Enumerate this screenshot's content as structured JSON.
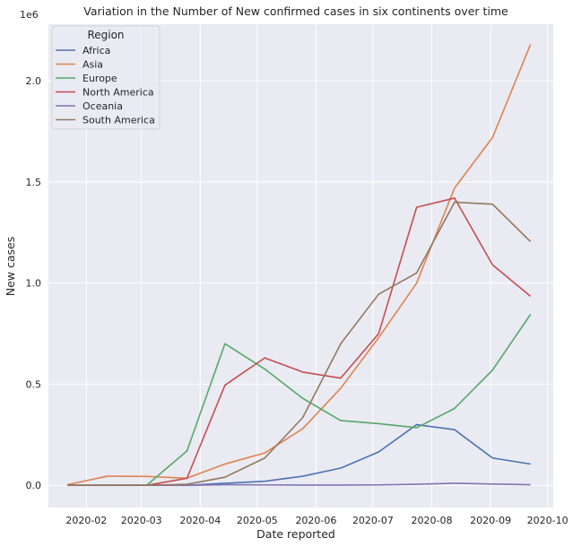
{
  "chart_data": {
    "type": "line",
    "title": "Variation in the Number of New confirmed cases in six continents over time",
    "xlabel": "Date reported",
    "ylabel": "New cases",
    "y_scale_label": "1e6",
    "x_ticks": [
      "2020-02",
      "2020-03",
      "2020-04",
      "2020-05",
      "2020-06",
      "2020-07",
      "2020-08",
      "2020-09",
      "2020-10"
    ],
    "y_ticks": [
      "0.0",
      "0.5",
      "1.0",
      "1.5",
      "2.0"
    ],
    "ylim": [
      -0.11,
      2.28
    ],
    "grid": true,
    "legend": {
      "title": "Region",
      "placement": "top-left"
    },
    "x": [
      "2020-01-22",
      "2020-02-12",
      "2020-03-04",
      "2020-03-25",
      "2020-04-14",
      "2020-05-05",
      "2020-05-25",
      "2020-06-14",
      "2020-07-04",
      "2020-07-24",
      "2020-08-13",
      "2020-09-02",
      "2020-09-22"
    ],
    "series": [
      {
        "name": "Africa",
        "color": "#4c72b0",
        "values": [
          0.0,
          0.0,
          0.0,
          0.0,
          0.01,
          0.02,
          0.045,
          0.085,
          0.165,
          0.3,
          0.275,
          0.135,
          0.105
        ]
      },
      {
        "name": "Asia",
        "color": "#dd8452",
        "values": [
          0.003,
          0.045,
          0.044,
          0.035,
          0.105,
          0.16,
          0.28,
          0.48,
          0.73,
          1.0,
          1.47,
          1.72,
          2.18
        ]
      },
      {
        "name": "Europe",
        "color": "#55a868",
        "values": [
          0.0,
          0.0,
          0.002,
          0.17,
          0.7,
          0.575,
          0.43,
          0.32,
          0.305,
          0.285,
          0.38,
          0.57,
          0.845
        ]
      },
      {
        "name": "North America",
        "color": "#c44e52",
        "values": [
          0.0,
          0.0,
          0.0,
          0.035,
          0.495,
          0.63,
          0.56,
          0.53,
          0.75,
          1.375,
          1.42,
          1.09,
          0.935
        ]
      },
      {
        "name": "Oceania",
        "color": "#8172b3",
        "values": [
          0.0,
          0.0,
          0.0,
          0.0,
          0.003,
          0.002,
          0.001,
          0.001,
          0.002,
          0.005,
          0.01,
          0.006,
          0.003
        ]
      },
      {
        "name": "South America",
        "color": "#937860",
        "values": [
          0.0,
          0.0,
          0.0,
          0.005,
          0.04,
          0.135,
          0.335,
          0.7,
          0.945,
          1.05,
          1.4,
          1.39,
          1.205
        ]
      }
    ]
  }
}
